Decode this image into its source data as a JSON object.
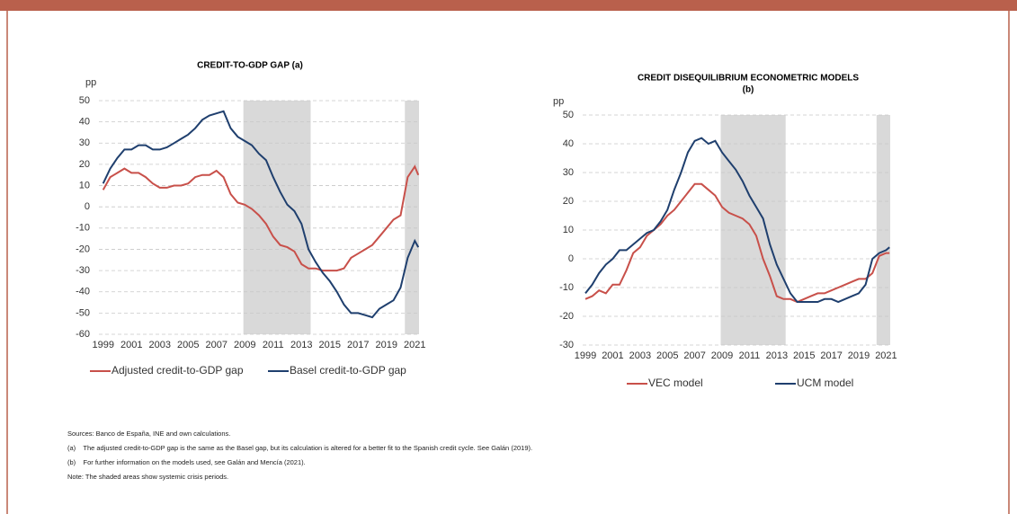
{
  "chart_data": [
    {
      "type": "line",
      "title": "CREDIT-TO-GDP GAP (a)",
      "y_label": "pp",
      "x": [
        1999,
        1999.5,
        2000,
        2000.5,
        2001,
        2001.5,
        2002,
        2002.5,
        2003,
        2003.5,
        2004,
        2004.5,
        2005,
        2005.5,
        2006,
        2006.5,
        2007,
        2007.5,
        2008,
        2008.5,
        2009,
        2009.5,
        2010,
        2010.5,
        2011,
        2011.5,
        2012,
        2012.5,
        2013,
        2013.5,
        2014,
        2014.5,
        2015,
        2015.5,
        2016,
        2016.5,
        2017,
        2017.5,
        2018,
        2018.5,
        2019,
        2019.5,
        2020,
        2020.5,
        2021,
        2021.25
      ],
      "series": [
        {
          "name": "Adjusted credit-to-GDP gap",
          "color": "#c8504a",
          "values": [
            8,
            14,
            16,
            18,
            16,
            16,
            14,
            11,
            9,
            9,
            10,
            10,
            11,
            14,
            15,
            15,
            17,
            14,
            6,
            2,
            1,
            -1,
            -4,
            -8,
            -14,
            -18,
            -19,
            -21,
            -27,
            -29,
            -29,
            -30,
            -30,
            -30,
            -29,
            -24,
            -22,
            -20,
            -18,
            -14,
            -10,
            -6,
            -4,
            14,
            19,
            15
          ]
        },
        {
          "name": "Basel credit-to-GDP gap",
          "color": "#1f3f6e",
          "values": [
            11,
            18,
            23,
            27,
            27,
            29,
            29,
            27,
            27,
            28,
            30,
            32,
            34,
            37,
            41,
            43,
            44,
            45,
            37,
            33,
            31,
            29,
            25,
            22,
            14,
            7,
            1,
            -2,
            -8,
            -20,
            -26,
            -31,
            -35,
            -40,
            -46,
            -50,
            -50,
            -51,
            -52,
            -48,
            -46,
            -44,
            -38,
            -24,
            -16,
            -19
          ]
        }
      ],
      "shaded_periods": [
        [
          2008.9,
          2013.65
        ],
        [
          2020.3,
          2021.3
        ]
      ],
      "xlim": [
        1998.7,
        2021.3
      ],
      "xticks": [
        1999,
        2001,
        2003,
        2005,
        2007,
        2009,
        2011,
        2013,
        2015,
        2017,
        2019,
        2021
      ],
      "ylim": [
        -60,
        50
      ],
      "yticks": [
        -60,
        -50,
        -40,
        -30,
        -20,
        -10,
        0,
        10,
        20,
        30,
        40,
        50
      ],
      "grid": true
    },
    {
      "type": "line",
      "title": "CREDIT DISEQUILIBRIUM ECONOMETRIC MODELS",
      "subtitle": "(b)",
      "y_label": "pp",
      "x": [
        1999,
        1999.5,
        2000,
        2000.5,
        2001,
        2001.5,
        2002,
        2002.5,
        2003,
        2003.5,
        2004,
        2004.5,
        2005,
        2005.5,
        2006,
        2006.5,
        2007,
        2007.5,
        2008,
        2008.5,
        2009,
        2009.5,
        2010,
        2010.5,
        2011,
        2011.5,
        2012,
        2012.5,
        2013,
        2013.5,
        2014,
        2014.5,
        2015,
        2015.5,
        2016,
        2016.5,
        2017,
        2017.5,
        2018,
        2018.5,
        2019,
        2019.5,
        2020,
        2020.5,
        2021,
        2021.25
      ],
      "series": [
        {
          "name": "VEC model",
          "color": "#c8504a",
          "values": [
            -14,
            -13,
            -11,
            -12,
            -9,
            -9,
            -4,
            2,
            4,
            8,
            10,
            12,
            15,
            17,
            20,
            23,
            26,
            26,
            24,
            22,
            18,
            16,
            15,
            14,
            12,
            8,
            0,
            -6,
            -13,
            -14,
            -14,
            -15,
            -14,
            -13,
            -12,
            -12,
            -11,
            -10,
            -9,
            -8,
            -7,
            -7,
            -5,
            1,
            2,
            2
          ]
        },
        {
          "name": "UCM model",
          "color": "#1f3f6e",
          "values": [
            -12,
            -9,
            -5,
            -2,
            0,
            3,
            3,
            5,
            7,
            9,
            10,
            13,
            17,
            24,
            30,
            37,
            41,
            42,
            40,
            41,
            37,
            34,
            31,
            27,
            22,
            18,
            14,
            5,
            -2,
            -7,
            -12,
            -15,
            -15,
            -15,
            -15,
            -14,
            -14,
            -15,
            -14,
            -13,
            -12,
            -9,
            0,
            2,
            3,
            4
          ]
        }
      ],
      "shaded_periods": [
        [
          2008.9,
          2013.65
        ],
        [
          2020.3,
          2021.3
        ]
      ],
      "xlim": [
        1998.8,
        2021.3
      ],
      "xticks": [
        1999,
        2001,
        2003,
        2005,
        2007,
        2009,
        2011,
        2013,
        2015,
        2017,
        2019,
        2021
      ],
      "ylim": [
        -30,
        50
      ],
      "yticks": [
        -30,
        -20,
        -10,
        0,
        10,
        20,
        30,
        40,
        50
      ],
      "grid": true
    }
  ],
  "notes": [
    "Sources: Banco de España, INE and own calculations.",
    "(a)    The adjusted credit-to-GDP gap is the same as the Basel gap, but its calculation is altered for a better fit to the Spanish credit cycle. See Galán (2019).",
    "(b)    For further information on the models used, see Galán and Mencía (2021).",
    "Note: The shaded areas show systemic crisis periods."
  ]
}
